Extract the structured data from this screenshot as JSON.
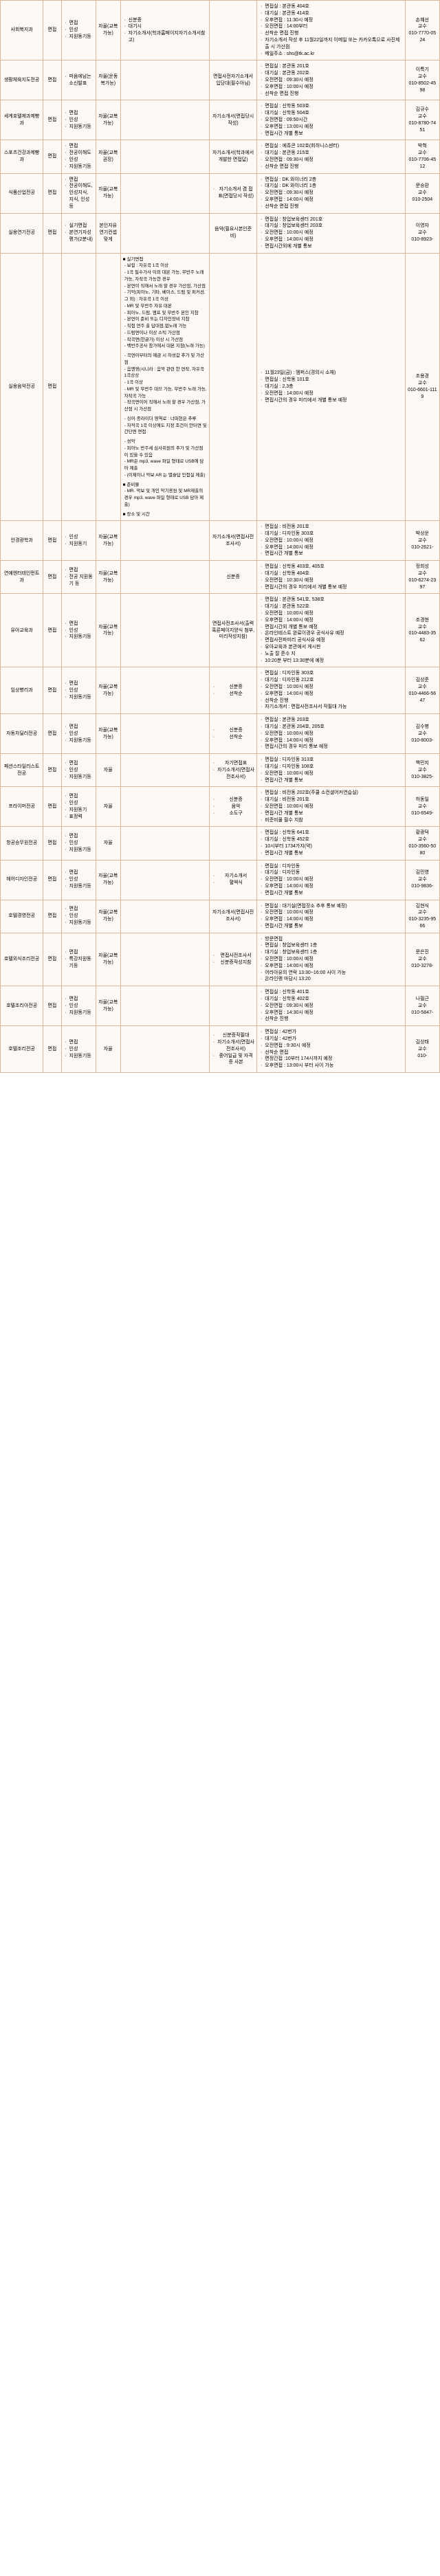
{
  "rows": [
    {
      "c1": "사회복지과",
      "c2": "면접",
      "c3": [
        "면접",
        "인성",
        "지원동기등"
      ],
      "c4": "자율(교복가능)",
      "c5": [
        "신분증",
        "대기시",
        "자기소개서(학과홈페이지자기소개서참고)"
      ],
      "c6": "",
      "c7": [
        "면접실 : 본관동 404호",
        "대기실 : 본관동 414호",
        "오후면접 : 11:30시 예정",
        "오전면접 : 14:00부터",
        "선착순 면접 진행",
        "자기소개서 작성 후 11월22일까지 이메일 또는 카카오톡으로 사진제출 시 가산점",
        "메일주소 : shs@tk.ac.kr"
      ],
      "c8": "손혜선<br>교수<br>010-7770-0524"
    },
    {
      "c1": "생활체육지도전공",
      "c2": "면접",
      "c3": [
        "마음에남는 소신발표"
      ],
      "c4": "자율(운동복가능)",
      "c5": "",
      "c6": "면접사전자기소개서 입당대(필수아님)",
      "c7": [
        "면접실 : 본관동 201호",
        "대기실 : 본관동 202호",
        "오전면접 : 09:30시 예정",
        "오후면접 : 10:00시 예정",
        "선착순 면접 진행"
      ],
      "c8": "이특기<br>교수<br>010-8502-4598"
    },
    {
      "c1": "세계호텔제과제빵과",
      "c2": "면접",
      "c3": [
        "면접",
        "인성",
        "지원동기등"
      ],
      "c4": "자율(교복가능)",
      "c5": "",
      "c6": "자기소개서(면접당시 작성)",
      "c7": [
        "면접실 : 신학동 503호",
        "대기실 : 신학동 504호",
        "오전면접 : 09:50시간",
        "오후면접 : 13:00시 예정",
        "면접시간 개별 통보"
      ],
      "c8": "김규수<br>교수<br>010-8780-7451"
    },
    {
      "c1": "스포츠건강과제빵과",
      "c2": "면접",
      "c3": [
        "면접",
        "전공이해도",
        "인성",
        "지원동기등"
      ],
      "c4": "자율(교복권장)",
      "c5": "",
      "c6": "자기소개서(학과에서 개발한 면접답)",
      "c7": [
        "면접실 : 에쥬콘 102호(회히니스센터)",
        "대기실 : 본관동 215호",
        "오전면접 : 09:30시 예정",
        "선착순 면접 진행"
      ],
      "c8": "박혁<br>교수<br>010-7706-4512"
    },
    {
      "c1": "식품산업전공",
      "c2": "면접",
      "c3": [
        "면접",
        "전공이해도, 인성지식, 지식, 인성등"
      ],
      "c4": "자율(교복가능)",
      "c5": "",
      "c6": [
        "자기소개서 겸 접표(면접당시 작성)"
      ],
      "c7": [
        "면접실 : DK 와이너리 2층",
        "대기실 : DK 와이너리 1층",
        "오전면접 : 09:30시 예정",
        "오후면접 : 14:00시 예정",
        "선착순 면접 진행"
      ],
      "c8": "문승환<br>교수<br>010-2504"
    },
    {
      "c1": "실용연기전공",
      "c2": "면접",
      "c3": [
        "실기면접",
        "본연기자성평가(2분내)"
      ],
      "c4": "본인자유연기컨셉맞게",
      "c5": "",
      "c6": "음악(필요시본인준비)",
      "c7": [
        "면접실 : 창업보육센터 201호",
        "대기실 : 창업보육센터 203호",
        "오전면접 : 10:00시 예정",
        "오후면접 : 14:00시 예정",
        "면접시간외에 개별 통보"
      ],
      "c8": "이영자<br>교수<br>010-8923-"
    },
    {
      "c1": "실용음악전공",
      "c2": "면접",
      "c3_raw": "long",
      "c4": "",
      "c5_raw": "long",
      "c6": "",
      "c7": [
        "11월23일(금) : 멤퍼스(경의시 소재)",
        "면접실 : 신학동 101호",
        "대기실 : 2,3층",
        "오전면접 : 14:00시 예정",
        "면접시간의 경우 미리에서 개별 통보 예정"
      ],
      "c8": "조용경<br>교수<br>010-6601-1119"
    },
    {
      "c1": "안경광학과",
      "c2": "면접",
      "c3": [
        "인성",
        "지원동기"
      ],
      "c4": "자율(교복가능)",
      "c5": "",
      "c6": "자기소개서(면접사전조사서)",
      "c7": [
        "면접실 : 비전동 201호",
        "대기실 : 디자인동 303호",
        "오전면접 : 10:00시 예정",
        "오후면접 : 14:00시 예정",
        "면접시간 개별 통보"
      ],
      "c8": "박상운<br>교수<br>010-2621-"
    },
    {
      "c1": "연예엔터테인먼트과",
      "c2": "면접",
      "c3": [
        "면접",
        "전공 지원동기 등"
      ],
      "c4": "자율(교복가능)",
      "c5": "",
      "c6": "신분증",
      "c7": [
        "면접실 : 신학동 403호, 405호",
        "대기실 : 신학동 404호",
        "오전면접 : 10:30시 예정",
        "면접시간의 경우 미리에서 개별 통보 예정"
      ],
      "c8": "정희성<br>교수<br>010-6274-2397"
    },
    {
      "c1": "유아교육과",
      "c2": "면접",
      "c3": [
        "면접",
        "인성",
        "지원동기등"
      ],
      "c4": "자율(교복가능)",
      "c5": "",
      "c6": "면접사전조사서(출력혹른페이지양식 첨부, 미리작성지참)",
      "c7": [
        "면접실 : 본관동 541호, 538호",
        "대기실 : 본관동 522호",
        "오전면접 : 10:00시 예정",
        "오후면접 : 14:00시 예정",
        "면접시간외 개별 통보 예정",
        "온라인테스트 완료이경우 공식사유 예정",
        "면접사전파미리 공식사유 예정",
        "유아교육과 본관에서 게시판",
        "노출 잘 준수 지",
        "10:20분 부터 13:30분에 예정"
      ],
      "c8": "조경현<br>교수<br>010-4483-3562"
    },
    {
      "c1": "임상병리과",
      "c2": "면접",
      "c3": [
        "면접",
        "인성",
        "지원동기등"
      ],
      "c4": "자율(교복가능)",
      "c5": "",
      "c6": [
        "신분증",
        "선착순"
      ],
      "c7": [
        "면접실 : 디자인동 303호",
        "대기실 : 디자인동 212호",
        "오전면접 : 10:00시 예정",
        "오후면접 : 14:00시 예정",
        "선착순 진행",
        "자기소개서 : 면접사전조사서 작필대 가능"
      ],
      "c8": "김상준<br>교수<br>010-4466-5647"
    },
    {
      "c1": "자동차딜러전공",
      "c2": "면접",
      "c3": [
        "면접",
        "인성",
        "지원동기등"
      ],
      "c4": "자율(교복가능)",
      "c5": "",
      "c6": [
        "신분증",
        "선착순"
      ],
      "c7": [
        "면접실 : 본관동 203호",
        "대기실 : 본관동 204호, 205호",
        "오전면접 : 10:00시 예정",
        "오후면접 : 14:00시 예정",
        "면접시간의 경우 미리 통보 예정"
      ],
      "c8": "김수병<br>교수<br>010-8003-"
    },
    {
      "c1": "패션스타일리스트전공",
      "c2": "면접",
      "c3": [
        "면접",
        "인성",
        "지원동기등"
      ],
      "c4": "자율",
      "c5": "",
      "c6": [
        "자기면접표",
        "자기소개서(면접사전조사서)"
      ],
      "c7": [
        "면접실 : 디자인동 313호",
        "대기실 : 디자인동 108호",
        "오전면접 : 10:00시 예정",
        "면접시간 개별 통보"
      ],
      "c8": "백민지<br>교수<br>010-3825-"
    },
    {
      "c1": "프라이머전공",
      "c2": "면접",
      "c3": [
        "면접",
        "인성",
        "지원동기",
        "표정력"
      ],
      "c4": "자율",
      "c5": "",
      "c6": [
        "신분증",
        "음악",
        "소도구"
      ],
      "c7": [
        "면접실 : 비전동 202호(주쿨 소컨셜어커연습실)",
        "대기실 : 비전동 201호",
        "오전면접 : 10:00시 예정",
        "면접시간 개별 통보",
        "비준비물 필수 지참"
      ],
      "c8": "허동일<br>교수<br>010-6549-"
    },
    {
      "c1": "항공승무원전공",
      "c2": "면접",
      "c3": [
        "면접",
        "인성",
        "지원동기등"
      ],
      "c4": "자율",
      "c5": "",
      "c6": "",
      "c7": [
        "면접실 : 신학동 641호",
        "대기실 : 신학동 452호",
        "10시부터 1734가지(약)",
        "면접시간 개별 통보"
      ],
      "c8": "황광덕<br>교수<br>010-3560-5080"
    },
    {
      "c1": "헤어디자인전공",
      "c2": "면접",
      "c3": [
        "면접",
        "인성",
        "지원동기등"
      ],
      "c4": "자율(교복가능)",
      "c5": "",
      "c6": [
        "자기소개서",
        "혈엑식"
      ],
      "c7": [
        "면접실 : 디자인동",
        "대기실 : 디자인동",
        "오전면접 : 10:00시 예정",
        "오후면접 : 14:00시 예정",
        "면접시간 개별 통보"
      ],
      "c8": "김민영<br>교수<br>010-9836-"
    },
    {
      "c1": "호텔경영전공",
      "c2": "면접",
      "c3": [
        "면접",
        "인성",
        "지원동기등"
      ],
      "c4": "자율(교복가능)",
      "c5": "",
      "c6": "자기소개서(면접사전조사서)",
      "c7": [
        "면접실 : 대기실(면접장소 추후 통보 예정)",
        "오전면접 : 10:00시 예정",
        "오후면접 : 14:00시 예정",
        "면접시간 개별 통보"
      ],
      "c8": "김현식<br>교수<br>010-3235-9566"
    },
    {
      "c1": "호텔외식조리전공",
      "c2": "면접",
      "c3": [
        "면접",
        "특강지원동기등"
      ],
      "c4": "자율(교복가능)",
      "c5": "",
      "c6": [
        "면접사전조사서",
        "신분증작성지참"
      ],
      "c7": [
        "방문면접",
        "면접실 : 창업보육센터 1층",
        "대기실 : 창업보육센터 1층",
        "오전면접 : 10:00시 예정",
        "오후면접 : 14:00시 예정",
        "어라아유의 연락 13:30~16:00 사이 가능",
        "온라인랭 마담시 13:20"
      ],
      "c8": "문은진<br>교수<br>010-3278-"
    },
    {
      "c1": "호텔조리아전공",
      "c2": "면접",
      "c3": [
        "면접",
        "인성",
        "지원동기등"
      ],
      "c4": "자율(교복가능)",
      "c5": "",
      "c6": "",
      "c7": [
        "면접실 : 신학동 401호",
        "대기실 : 신학동 402호",
        "오전면접 : 09:30시 예정",
        "오후면접 : 14:30시 예정",
        "선착순 진행"
      ],
      "c8": "나필근<br>교수<br>010-5847-"
    },
    {
      "c1": "호텔조리전공",
      "c2": "면접",
      "c3": [
        "면접",
        "인성",
        "지원동기등"
      ],
      "c4": "자율",
      "c5": "",
      "c6": [
        "신분증작필대",
        "자기소개서(면접사전조사서)",
        "중어일급 및 자격증 사본"
      ],
      "c7": [
        "면접실 : 42번가",
        "대기실 : 42번가",
        "오전면접 : 9:30시 예정",
        "선착순 면접",
        "면정간접 :10부터 174시까지 예정",
        "오후면접 : 13:00시 부터 사이 가능"
      ],
      "c8": "김상태<br>교수<br>010-"
    }
  ],
  "music_content": {
    "section1_title": "■ 실기면접",
    "section1_lines": [
      "보컬 : 자유곡 1곡 이상",
      "1곡 필수가사 이외 대본 가능, 무반주 노래 가능, 자작곡 가능한 경우",
      "본연이 직해서 노래 할 경우 가산점, 가산점",
      "기악(피아노, 기타, 베이스, 드럼 및 퍼커션, 그 외) : 자유곡 1곡 이상",
      "MR 및 무반주 자유 대본",
      "피아노, 드럼, 앰프 및 무반주 본인 지참",
      "본연이 준비 또는 디자인장비 지참",
      "직접 연주 출 답대점,없노래 가능",
      "드럼면이나 이상 스틱 가산점",
      "작곡면(한글가) 이상 시 가산점",
      "백반주공사 참가에서 대본 지참(노래 가능)"
    ],
    "section2_lines": [
      "곡연이부터의 예금 시 하성값 추가 및 가산점",
      "음엔영(시니라 : 음악 관련 한 연작, 자유곡 1곡상상",
      "1곡 이상",
      "MR 및 무반주 대므 가능, 무반주 노래 가능, 자작곡 가능",
      "작곡면이어 직해서 노래 할 경우 가산점, 가산점 시 가산점"
    ],
    "section3_lines": [
      "싱어·종라이더 영역로 : 너떠현은 추루",
      "자적곡 1곡 이상에도 지정 조건이 안터면 및 간단면 면접"
    ],
    "section4_lines": [
      "성악",
      "피아노 반주세 심사위원의 추가 및 가산점이 있을 수 있음",
      "MR은 mp3, wave 파일 형태로 USB에 담아 제출",
      "(이제이나 악보 AR 는 별슬답 인접실 제출)"
    ],
    "section5_title": "■ 준비물",
    "section5_lines": [
      "MR. 악보 및 개인 악기용원 및 MR제출의 경우 mp3, wave 파일 형태로 USB 담아 제출)"
    ],
    "section6_title": "■ 장소 및 시간"
  }
}
